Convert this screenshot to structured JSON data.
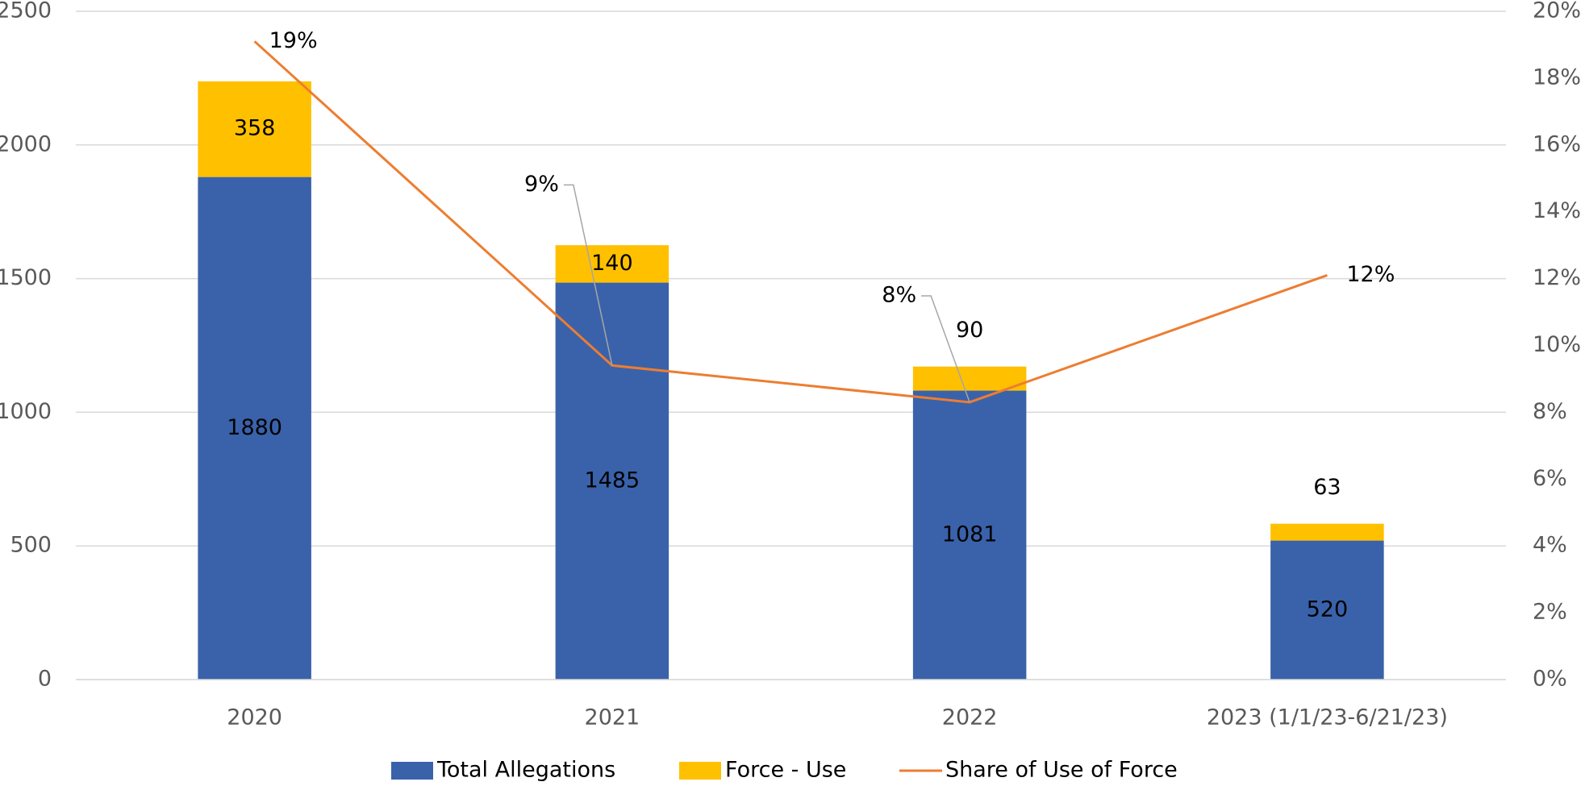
{
  "chart_data": {
    "type": "bar",
    "categories": [
      "2020",
      "2021",
      "2022",
      "2023 (1/1/23-6/21/23)"
    ],
    "series": [
      {
        "name": "Total Allegations",
        "color": "#3a62aa",
        "values": [
          1880,
          1485,
          1081,
          520
        ]
      },
      {
        "name": "Force - Use",
        "color": "#ffc000",
        "values": [
          358,
          140,
          90,
          63
        ]
      },
      {
        "name": "Share of Use of Force",
        "type": "line",
        "axis": "y2",
        "color": "#ed7d31",
        "values": [
          19.1,
          9.4,
          8.3,
          12.1
        ],
        "value_labels": [
          "19%",
          "9%",
          "8%",
          "12%"
        ]
      }
    ],
    "stacked": true,
    "ylim": [
      0,
      2500
    ],
    "yticks": [
      0,
      500,
      1000,
      1500,
      2000,
      2500
    ],
    "y2lim": [
      0,
      20
    ],
    "y2ticks": [
      {
        "value": 0,
        "label": "0%"
      },
      {
        "value": 2,
        "label": "2%"
      },
      {
        "value": 4,
        "label": "4%"
      },
      {
        "value": 6,
        "label": "6%"
      },
      {
        "value": 8,
        "label": "8%"
      },
      {
        "value": 10,
        "label": "10%"
      },
      {
        "value": 12,
        "label": "12%"
      },
      {
        "value": 14,
        "label": "14%"
      },
      {
        "value": 16,
        "label": "16%"
      },
      {
        "value": 18,
        "label": "18%"
      },
      {
        "value": 20,
        "label": "20%"
      }
    ],
    "grid": true,
    "legend": "bottom"
  }
}
